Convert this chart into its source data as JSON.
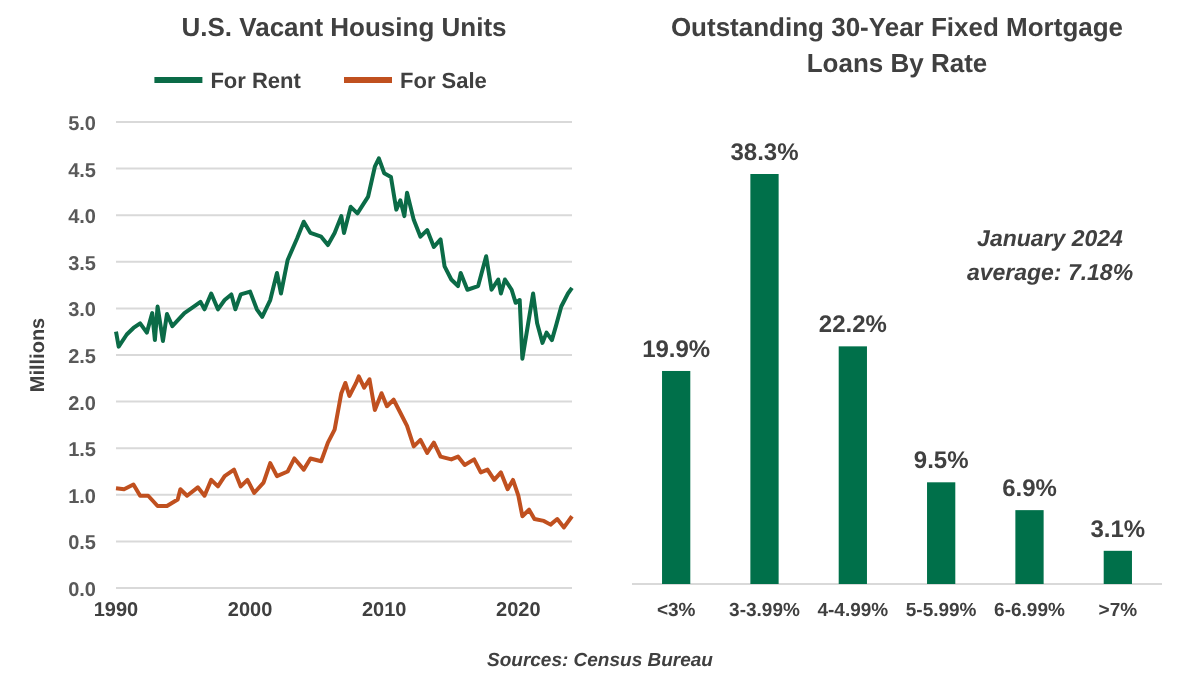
{
  "chart_data": [
    {
      "type": "line",
      "title": "U.S. Vacant Housing Units",
      "ylabel": "Millions",
      "xlim": [
        1990,
        2024
      ],
      "xticks": [
        1990,
        2000,
        2010,
        2020
      ],
      "ylim": [
        0,
        5
      ],
      "yticks": [
        {
          "value": 0,
          "label": "0.0"
        },
        {
          "value": 0.5,
          "label": "0.5"
        },
        {
          "value": 1,
          "label": "1.0"
        },
        {
          "value": 1.5,
          "label": "1.5"
        },
        {
          "value": 2,
          "label": "2.0"
        },
        {
          "value": 2.5,
          "label": "2.5"
        },
        {
          "value": 3,
          "label": "3.0"
        },
        {
          "value": 3.5,
          "label": "3.5"
        },
        {
          "value": 4,
          "label": "4.0"
        },
        {
          "value": 4.5,
          "label": "4.5"
        },
        {
          "value": 5,
          "label": "5.0"
        }
      ],
      "grid": "y",
      "legend": "top",
      "line_style": "solid",
      "marker": "none",
      "annotations": [
        "Sources: Census Bureau"
      ],
      "series": [
        {
          "name": "For Rent",
          "color": "#0b6b47",
          "x": [
            1990,
            1990.2,
            1990.8,
            1991.3,
            1991.8,
            1992.3,
            1992.7,
            1992.9,
            1993.1,
            1993.5,
            1993.8,
            1994.2,
            1995.1,
            1995.8,
            1996.3,
            1996.6,
            1997.1,
            1997.6,
            1998.1,
            1998.6,
            1998.9,
            1999.3,
            2000,
            2000.5,
            2000.9,
            2001.5,
            2002,
            2002.3,
            2002.8,
            2003.5,
            2004,
            2004.5,
            2005.3,
            2005.8,
            2006.3,
            2006.8,
            2007,
            2007.5,
            2008,
            2008.8,
            2009.3,
            2009.6,
            2010,
            2010.5,
            2010.9,
            2011.2,
            2011.5,
            2011.7,
            2012.2,
            2012.7,
            2013.2,
            2013.7,
            2014.2,
            2014.5,
            2015,
            2015.5,
            2015.7,
            2016.2,
            2017,
            2017.6,
            2018,
            2018.5,
            2018.7,
            2019,
            2019.5,
            2019.8,
            2020.1,
            2020.3,
            2020.7,
            2021.1,
            2021.4,
            2021.8,
            2022.1,
            2022.5,
            2022.8,
            2023.2,
            2023.7,
            2024
          ],
          "values": [
            2.75,
            2.59,
            2.72,
            2.79,
            2.84,
            2.74,
            2.95,
            2.66,
            3.02,
            2.65,
            2.94,
            2.81,
            2.95,
            3.02,
            3.07,
            2.99,
            3.16,
            2.99,
            3.09,
            3.15,
            2.99,
            3.15,
            3.18,
            2.99,
            2.91,
            3.09,
            3.38,
            3.16,
            3.52,
            3.75,
            3.93,
            3.81,
            3.77,
            3.68,
            3.81,
            3.99,
            3.81,
            4.09,
            4.02,
            4.2,
            4.52,
            4.61,
            4.45,
            4.41,
            4.06,
            4.16,
            3.99,
            4.24,
            3.95,
            3.77,
            3.84,
            3.66,
            3.74,
            3.45,
            3.31,
            3.24,
            3.38,
            3.2,
            3.24,
            3.56,
            3.2,
            3.31,
            3.16,
            3.31,
            3.2,
            3.06,
            3.09,
            2.46,
            2.81,
            3.16,
            2.84,
            2.63,
            2.74,
            2.66,
            2.81,
            3.02,
            3.16,
            3.22
          ]
        },
        {
          "name": "For Sale",
          "color": "#c0501f",
          "x": [
            1990,
            1990.6,
            1991.3,
            1991.8,
            1992.4,
            1993.1,
            1993.8,
            1994.6,
            1994.8,
            1995.3,
            1996.1,
            1996.6,
            1997.1,
            1997.6,
            1998.1,
            1998.8,
            1999.3,
            1999.8,
            2000.3,
            2001,
            2001.5,
            2002,
            2002.8,
            2003.3,
            2004,
            2004.5,
            2005.3,
            2005.8,
            2006.3,
            2006.8,
            2007.1,
            2007.4,
            2007.9,
            2008.1,
            2008.5,
            2008.9,
            2009.3,
            2009.8,
            2010.2,
            2010.7,
            2011.2,
            2011.7,
            2012.2,
            2012.7,
            2013.2,
            2013.7,
            2014.2,
            2015,
            2015.5,
            2016,
            2016.7,
            2017.2,
            2017.7,
            2018.2,
            2018.7,
            2019.2,
            2019.6,
            2020,
            2020.3,
            2020.8,
            2021.2,
            2021.9,
            2022.4,
            2022.9,
            2023.4,
            2024
          ],
          "values": [
            1.07,
            1.06,
            1.11,
            0.99,
            0.99,
            0.88,
            0.88,
            0.95,
            1.06,
            0.99,
            1.08,
            0.99,
            1.16,
            1.09,
            1.2,
            1.27,
            1.09,
            1.16,
            1.02,
            1.13,
            1.34,
            1.2,
            1.25,
            1.39,
            1.27,
            1.39,
            1.36,
            1.56,
            1.7,
            2.09,
            2.2,
            2.06,
            2.2,
            2.27,
            2.15,
            2.24,
            1.91,
            2.09,
            1.95,
            2.02,
            1.88,
            1.74,
            1.52,
            1.59,
            1.45,
            1.56,
            1.41,
            1.38,
            1.41,
            1.32,
            1.38,
            1.24,
            1.27,
            1.16,
            1.24,
            1.06,
            1.16,
            0.99,
            0.77,
            0.84,
            0.74,
            0.72,
            0.68,
            0.74,
            0.65,
            0.77
          ]
        }
      ]
    },
    {
      "type": "bar",
      "title": "Outstanding  30-Year Fixed Mortgage Loans By Rate",
      "categories": [
        "<3%",
        "3-3.99%",
        "4-4.99%",
        "5-5.99%",
        "6-6.99%",
        ">7%"
      ],
      "values": [
        19.9,
        38.3,
        22.2,
        9.5,
        6.9,
        3.1
      ],
      "value_labels": [
        "19.9%",
        "38.3%",
        "22.2%",
        "9.5%",
        "6.9%",
        "3.1%"
      ],
      "color": "#00704a",
      "annotations": [
        "January 2024 average: 7.18%"
      ]
    }
  ]
}
